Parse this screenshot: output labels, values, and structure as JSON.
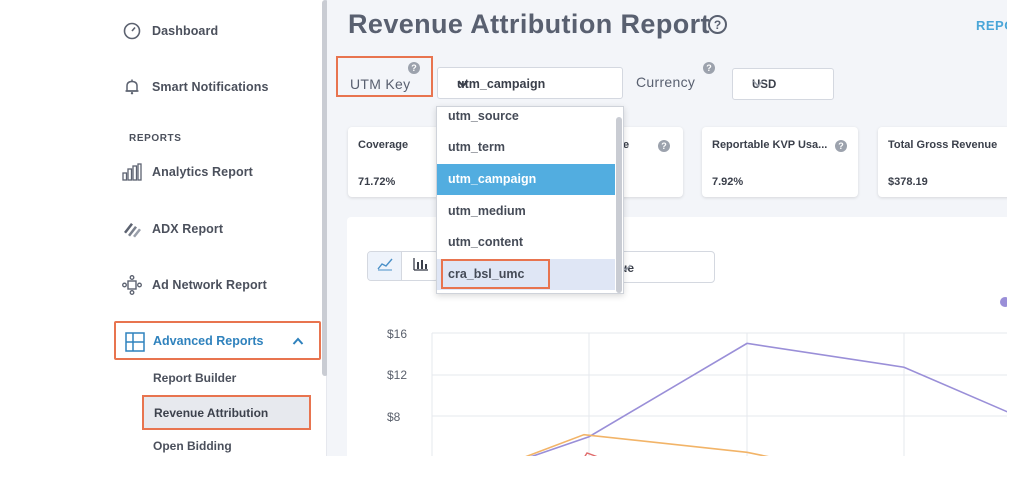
{
  "sidebar": {
    "items": [
      {
        "label": "Dashboard",
        "icon": "gauge-icon"
      },
      {
        "label": "Smart Notifications",
        "icon": "bell-icon"
      },
      {
        "label": "Analytics Report",
        "icon": "bar-chart-icon"
      },
      {
        "label": "ADX Report",
        "icon": "stripes-icon"
      },
      {
        "label": "Ad Network Report",
        "icon": "network-icon"
      }
    ],
    "section_reports": "REPORTS",
    "advanced": {
      "label": "Advanced Reports",
      "icon": "layout-icon",
      "expanded": true
    },
    "sub_items": [
      "Report Builder",
      "Revenue Attribution",
      "Open Bidding"
    ],
    "active_sub": "Revenue Attribution"
  },
  "header": {
    "title": "Revenue Attribution Report",
    "right_link": "REPO"
  },
  "filters": {
    "utm_key_label": "UTM Key",
    "utm_key_value": "utm_campaign",
    "currency_label": "Currency",
    "currency_value": "USD"
  },
  "cards": [
    {
      "title": "Coverage",
      "value": "71.72%"
    },
    {
      "title": "e",
      "value": ""
    },
    {
      "title": "Reportable KVP Usa...",
      "value": "7.92%"
    },
    {
      "title": "Total Gross Revenue",
      "value": "$378.19"
    }
  ],
  "dropdown": {
    "options": [
      "utm_source",
      "utm_term",
      "utm_campaign",
      "utm_medium",
      "utm_content",
      "cra_bsl_umc"
    ],
    "selected": "utm_campaign",
    "hovered": "cra_bsl_umc"
  },
  "chart_controls": {
    "metric_partial": "ue"
  },
  "colors": {
    "accent": "#2f82bd",
    "highlight": "#e8744f",
    "selected": "#52ade0",
    "series_purple": "#9a8fd8",
    "series_orange": "#f2b468",
    "series_red": "#e06b6b"
  },
  "chart_data": {
    "type": "line",
    "y_ticks": [
      "$16",
      "$12",
      "$8"
    ],
    "series": [
      {
        "color": "purple",
        "values": [
          6,
          15,
          12.7,
          8
        ]
      },
      {
        "color": "orange",
        "values": [
          6.2,
          4.5
        ]
      }
    ],
    "grid": true
  }
}
